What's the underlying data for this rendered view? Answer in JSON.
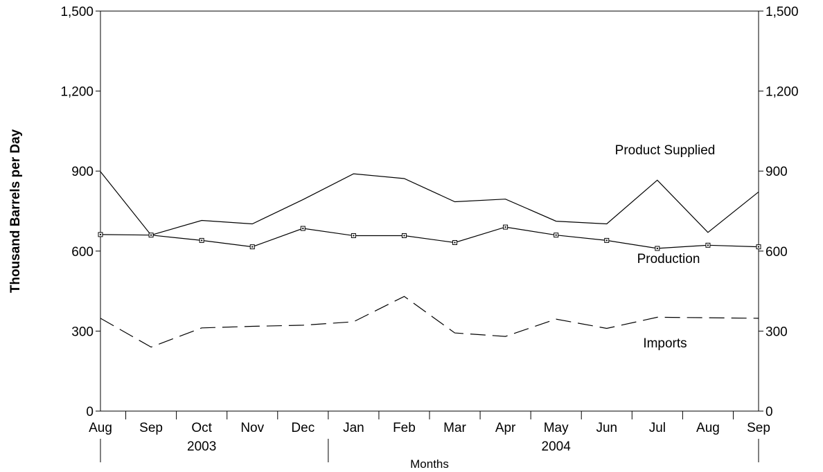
{
  "chart_data": {
    "type": "line",
    "title": "",
    "ylabel": "Thousand Barrels per Day",
    "xlabel": "Months",
    "ylim": [
      0,
      1500
    ],
    "yticks": [
      0,
      300,
      600,
      900,
      1200,
      1500
    ],
    "ytick_labels": [
      "0",
      "300",
      "600",
      "900",
      "1,200",
      "1,500"
    ],
    "categories": [
      "Aug",
      "Sep",
      "Oct",
      "Nov",
      "Dec",
      "Jan",
      "Feb",
      "Mar",
      "Apr",
      "May",
      "Jun",
      "Jul",
      "Aug",
      "Sep"
    ],
    "year_labels": [
      {
        "text": "2003",
        "category_index": 2
      },
      {
        "text": "2004",
        "category_index": 9
      }
    ],
    "series": [
      {
        "name": "Product Supplied",
        "style": "solid",
        "markers": false,
        "values": [
          898,
          660,
          715,
          702,
          793,
          890,
          872,
          785,
          795,
          712,
          702,
          866,
          670,
          822
        ]
      },
      {
        "name": "Production",
        "style": "solid",
        "markers": true,
        "values": [
          662,
          660,
          640,
          616,
          685,
          658,
          658,
          632,
          690,
          660,
          640,
          610,
          622,
          616
        ]
      },
      {
        "name": "Imports",
        "style": "dashed",
        "markers": false,
        "values": [
          348,
          240,
          312,
          318,
          322,
          335,
          430,
          293,
          280,
          345,
          310,
          352,
          350,
          348
        ]
      }
    ],
    "grid": false,
    "colors": {
      "line": "#000000",
      "background": "#ffffff"
    }
  }
}
